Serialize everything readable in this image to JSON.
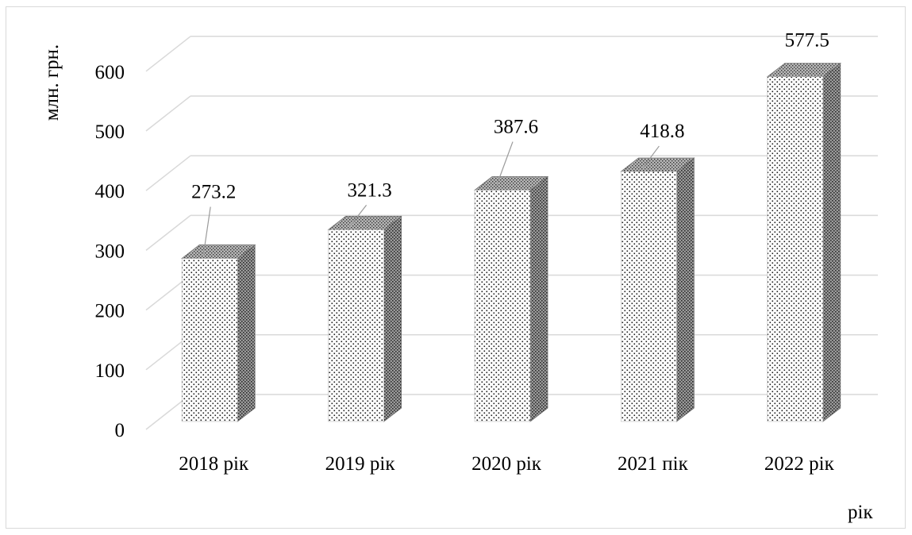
{
  "chart_data": {
    "type": "bar",
    "categories": [
      "2018 рік",
      "2019 рік",
      "2020 рік",
      "2021 пік",
      "2022 рік"
    ],
    "values": [
      273.2,
      321.3,
      387.6,
      418.8,
      577.5
    ],
    "data_labels": [
      "273.2",
      "321.3",
      "387.6",
      "418.8",
      "577.5"
    ],
    "title": "",
    "xlabel": "рік",
    "ylabel": "млн. грн.",
    "ylim": [
      0,
      600
    ],
    "yticks": [
      "0",
      "100",
      "200",
      "300",
      "400",
      "500",
      "600"
    ],
    "grid": true,
    "style": "3d-column-dotted-pattern"
  }
}
